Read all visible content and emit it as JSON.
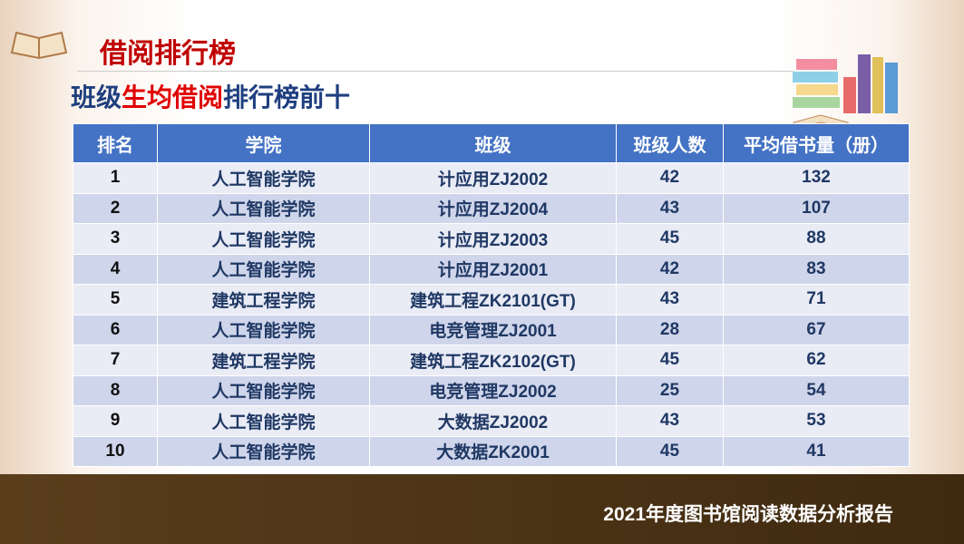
{
  "header": {
    "title": "借阅排行榜",
    "subtitle": [
      "班级",
      "生均借阅",
      "排行榜前十"
    ]
  },
  "table": {
    "columns": [
      "排名",
      "学院",
      "班级",
      "班级人数",
      "平均借书量（册）"
    ],
    "rows": [
      [
        "1",
        "人工智能学院",
        "计应用ZJ2002",
        "42",
        "132"
      ],
      [
        "2",
        "人工智能学院",
        "计应用ZJ2004",
        "43",
        "107"
      ],
      [
        "3",
        "人工智能学院",
        "计应用ZJ2003",
        "45",
        "88"
      ],
      [
        "4",
        "人工智能学院",
        "计应用ZJ2001",
        "42",
        "83"
      ],
      [
        "5",
        "建筑工程学院",
        "建筑工程ZK2101(GT)",
        "43",
        "71"
      ],
      [
        "6",
        "人工智能学院",
        "电竞管理ZJ2001",
        "28",
        "67"
      ],
      [
        "7",
        "建筑工程学院",
        "建筑工程ZK2102(GT)",
        "45",
        "62"
      ],
      [
        "8",
        "人工智能学院",
        "电竞管理ZJ2002",
        "25",
        "54"
      ],
      [
        "9",
        "人工智能学院",
        "大数据ZJ2002",
        "43",
        "53"
      ],
      [
        "10",
        "人工智能学院",
        "大数据ZK2001",
        "45",
        "41"
      ]
    ]
  },
  "footer": {
    "text": "2021年度图书馆阅读数据分析报告"
  }
}
